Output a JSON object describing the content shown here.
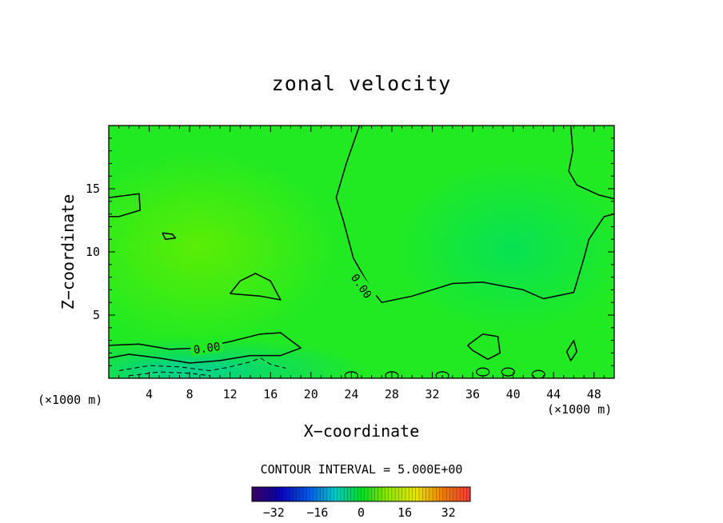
{
  "chart_data": {
    "type": "heatmap",
    "title": "zonal velocity",
    "xlabel": "X−coordinate",
    "ylabel": "Z−coordinate",
    "x_unit_left": "(×1000 m)",
    "x_unit_right": "(×1000 m)",
    "xlim": [
      0,
      50
    ],
    "ylim": [
      0,
      20
    ],
    "xticks": [
      4,
      8,
      12,
      16,
      20,
      24,
      28,
      32,
      36,
      40,
      44,
      48
    ],
    "yticks": [
      5,
      10,
      15
    ],
    "contour_interval_text": "CONTOUR INTERVAL = 5.000E+00",
    "contour_labels": [
      "0.00",
      "0.00"
    ],
    "colorbar": {
      "range": [
        -40,
        40
      ],
      "ticks": [
        -32,
        -16,
        0,
        16,
        32
      ],
      "tick_labels": [
        "−32",
        "−16",
        "0",
        "16",
        "32"
      ]
    },
    "zero_contour_main": [
      [
        0,
        14.3
      ],
      [
        3,
        14.6
      ],
      [
        3.1,
        13.3
      ],
      [
        1,
        12.8
      ],
      [
        0,
        12.8
      ]
    ],
    "zero_contour_right": [
      [
        24.8,
        20
      ],
      [
        23.5,
        17
      ],
      [
        22.5,
        14.3
      ],
      [
        23.2,
        12.5
      ],
      [
        24.2,
        9.5
      ],
      [
        26,
        7
      ],
      [
        27,
        6
      ],
      [
        30,
        6.5
      ],
      [
        34,
        7.5
      ],
      [
        37,
        7.6
      ],
      [
        41,
        7
      ],
      [
        43,
        6.3
      ],
      [
        46,
        6.8
      ],
      [
        47,
        9.5
      ],
      [
        47.5,
        11
      ],
      [
        49,
        12.8
      ],
      [
        50,
        13
      ]
    ],
    "zero_contour_upper_right": [
      [
        45.7,
        20
      ],
      [
        45.9,
        18
      ],
      [
        45.5,
        16.4
      ],
      [
        46.3,
        15.3
      ],
      [
        48.5,
        14.5
      ],
      [
        50,
        14.2
      ]
    ],
    "zero_contour_lower": [
      [
        0,
        2.6
      ],
      [
        3,
        2.7
      ],
      [
        6,
        2.3
      ],
      [
        9,
        2.4
      ],
      [
        12,
        2.9
      ],
      [
        15,
        3.5
      ],
      [
        17,
        3.6
      ],
      [
        18,
        3.0
      ],
      [
        19,
        2.4
      ],
      [
        17,
        1.8
      ],
      [
        14,
        1.8
      ],
      [
        11,
        1.4
      ],
      [
        8,
        1.2
      ],
      [
        5,
        1.6
      ],
      [
        2,
        1.9
      ],
      [
        0,
        1.6
      ]
    ],
    "zero_contour_islands": [
      [
        [
          12,
          6.7
        ],
        [
          13,
          7.7
        ],
        [
          14.5,
          8.3
        ],
        [
          16,
          7.7
        ],
        [
          17,
          6.2
        ],
        [
          15,
          6.5
        ],
        [
          13.5,
          6.6
        ],
        [
          12,
          6.7
        ]
      ],
      [
        [
          5.3,
          11.5
        ],
        [
          6.3,
          11.4
        ],
        [
          6.6,
          11.1
        ],
        [
          5.6,
          11.0
        ],
        [
          5.3,
          11.5
        ]
      ],
      [
        [
          35.5,
          2.6
        ],
        [
          37,
          3.5
        ],
        [
          38.5,
          3.3
        ],
        [
          38.7,
          2.0
        ],
        [
          37.5,
          1.5
        ],
        [
          36,
          2.2
        ],
        [
          35.5,
          2.6
        ]
      ],
      [
        [
          45.3,
          2.1
        ],
        [
          46,
          3.0
        ],
        [
          46.3,
          2.1
        ],
        [
          45.7,
          1.4
        ],
        [
          45.3,
          2.1
        ]
      ]
    ],
    "negative_contours_dashed": [
      [
        [
          1,
          0.6
        ],
        [
          4,
          1.0
        ],
        [
          7,
          0.9
        ],
        [
          10,
          0.6
        ],
        [
          12,
          0.9
        ],
        [
          14,
          1.3
        ],
        [
          15,
          1.6
        ],
        [
          16,
          1.1
        ],
        [
          17.5,
          0.8
        ]
      ],
      [
        [
          2,
          0.2
        ],
        [
          5,
          0.5
        ],
        [
          8,
          0.4
        ],
        [
          10,
          0.2
        ]
      ]
    ],
    "surface_blobs": [
      [
        24,
        0.2
      ],
      [
        28,
        0.2
      ],
      [
        33,
        0.2
      ],
      [
        37,
        0.5
      ],
      [
        39.5,
        0.5
      ],
      [
        42.5,
        0.3
      ]
    ]
  }
}
